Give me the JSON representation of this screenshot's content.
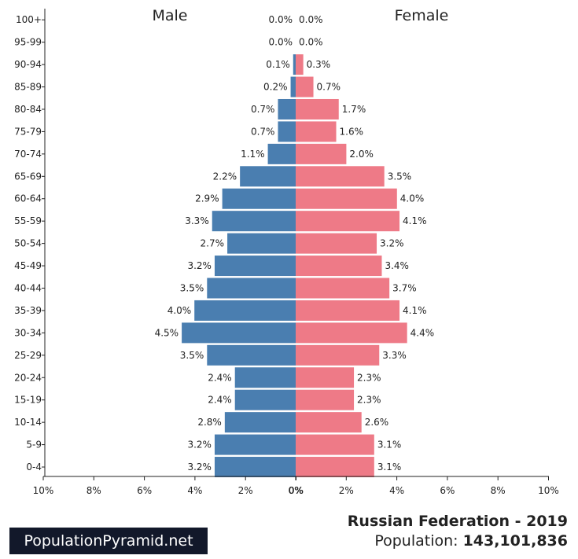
{
  "chart_data": {
    "type": "population_pyramid",
    "left_series_label": "Male",
    "right_series_label": "Female",
    "age_groups": [
      "100+",
      "95-99",
      "90-94",
      "85-89",
      "80-84",
      "75-79",
      "70-74",
      "65-69",
      "60-64",
      "55-59",
      "50-54",
      "45-49",
      "40-44",
      "35-39",
      "30-34",
      "25-29",
      "20-24",
      "15-19",
      "10-14",
      "5-9",
      "0-4"
    ],
    "male_values": [
      0.0,
      0.0,
      0.1,
      0.2,
      0.7,
      0.7,
      1.1,
      2.2,
      2.9,
      3.3,
      2.7,
      3.2,
      3.5,
      4.0,
      4.5,
      3.5,
      2.4,
      2.4,
      2.8,
      3.2,
      3.2
    ],
    "female_values": [
      0.0,
      0.0,
      0.3,
      0.7,
      1.7,
      1.6,
      2.0,
      3.5,
      4.0,
      4.1,
      3.2,
      3.4,
      3.7,
      4.1,
      4.4,
      3.3,
      2.3,
      2.3,
      2.6,
      3.1,
      3.1
    ],
    "male_labels": [
      "0.0%",
      "0.0%",
      "0.1%",
      "0.2%",
      "0.7%",
      "0.7%",
      "1.1%",
      "2.2%",
      "2.9%",
      "3.3%",
      "2.7%",
      "3.2%",
      "3.5%",
      "4.0%",
      "4.5%",
      "3.5%",
      "2.4%",
      "2.4%",
      "2.8%",
      "3.2%",
      "3.2%"
    ],
    "female_labels": [
      "0.0%",
      "0.0%",
      "0.3%",
      "0.7%",
      "1.7%",
      "1.6%",
      "2.0%",
      "3.5%",
      "4.0%",
      "4.1%",
      "3.2%",
      "3.4%",
      "3.7%",
      "4.1%",
      "4.4%",
      "3.3%",
      "2.3%",
      "2.3%",
      "2.6%",
      "3.1%",
      "3.1%"
    ],
    "x_range_percent": [
      0,
      10
    ],
    "x_ticks_left": [
      "10%",
      "8%",
      "6%",
      "4%",
      "2%",
      "0%"
    ],
    "x_ticks_right": [
      "0%",
      "2%",
      "4%",
      "6%",
      "8%",
      "10%"
    ],
    "colors": {
      "male": "#4a7eb0",
      "female": "#ee7a87"
    }
  },
  "footer": {
    "brand": "PopulationPyramid.net",
    "country_year": "Russian Federation - 2019",
    "population_label": "Population: ",
    "population_value": "143,101,836"
  }
}
